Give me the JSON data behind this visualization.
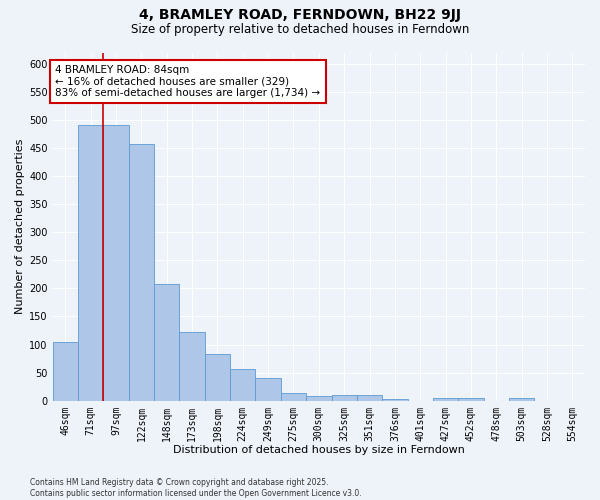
{
  "title": "4, BRAMLEY ROAD, FERNDOWN, BH22 9JJ",
  "subtitle": "Size of property relative to detached houses in Ferndown",
  "xlabel": "Distribution of detached houses by size in Ferndown",
  "ylabel": "Number of detached properties",
  "footnote1": "Contains HM Land Registry data © Crown copyright and database right 2025.",
  "footnote2": "Contains public sector information licensed under the Open Government Licence v3.0.",
  "categories": [
    "46sqm",
    "71sqm",
    "97sqm",
    "122sqm",
    "148sqm",
    "173sqm",
    "198sqm",
    "224sqm",
    "249sqm",
    "275sqm",
    "300sqm",
    "325sqm",
    "351sqm",
    "376sqm",
    "401sqm",
    "427sqm",
    "452sqm",
    "478sqm",
    "503sqm",
    "528sqm",
    "554sqm"
  ],
  "values": [
    105,
    491,
    491,
    457,
    207,
    123,
    83,
    57,
    40,
    14,
    9,
    11,
    11,
    3,
    0,
    5,
    5,
    0,
    5,
    0,
    0
  ],
  "bar_color": "#aec6e8",
  "bar_edge_color": "#5b9bd5",
  "red_line_x": 1.5,
  "annotation_title": "4 BRAMLEY ROAD: 84sqm",
  "annotation_line1": "← 16% of detached houses are smaller (329)",
  "annotation_line2": "83% of semi-detached houses are larger (1,734) →",
  "annotation_box_color": "#ffffff",
  "annotation_box_edgecolor": "#cc0000",
  "ylim": [
    0,
    620
  ],
  "yticks": [
    0,
    50,
    100,
    150,
    200,
    250,
    300,
    350,
    400,
    450,
    500,
    550,
    600
  ],
  "background_color": "#eef2f9",
  "grid_color": "#ffffff",
  "title_fontsize": 10,
  "subtitle_fontsize": 8.5,
  "xlabel_fontsize": 8,
  "ylabel_fontsize": 8,
  "tick_fontsize": 7,
  "annot_fontsize": 7.5
}
